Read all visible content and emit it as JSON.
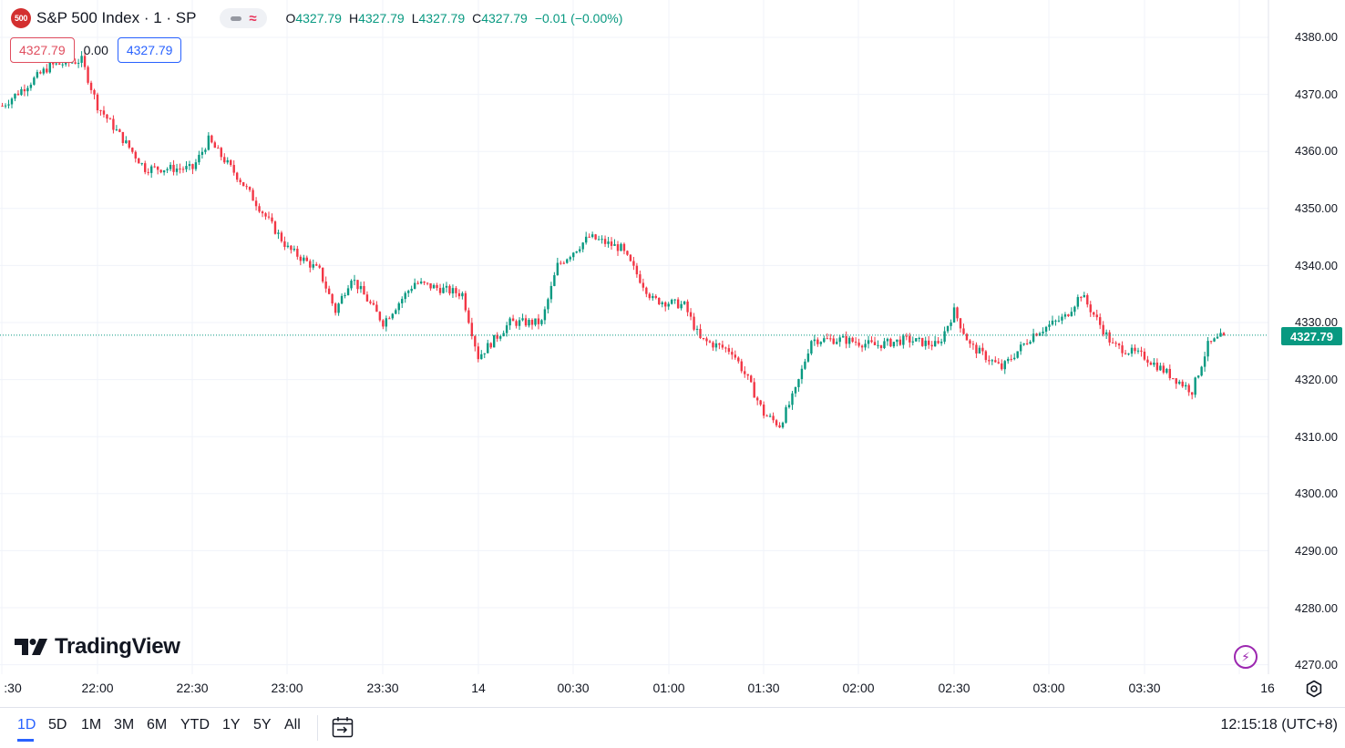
{
  "header": {
    "symbol_badge": "500",
    "symbol_title": "S&P 500 Index · 1 · SP",
    "ohlc": {
      "o_label": "O",
      "o_value": "4327.79",
      "h_label": "H",
      "h_value": "4327.79",
      "l_label": "L",
      "l_value": "4327.79",
      "c_label": "C",
      "c_value": "4327.79",
      "change": "−0.01 (−0.00%)"
    },
    "sell_price": "4327.79",
    "spread": "0.00",
    "buy_price": "4327.79"
  },
  "price_axis": {
    "labels": [
      "4380.00",
      "4370.00",
      "4360.00",
      "4350.00",
      "4340.00",
      "4330.00",
      "4320.00",
      "4310.00",
      "4300.00",
      "4290.00",
      "4280.00",
      "4270.00"
    ],
    "last_price_tag": "4327.79"
  },
  "time_axis": {
    "labels": [
      ":30",
      "22:00",
      "22:30",
      "23:00",
      "23:30",
      "14",
      "00:30",
      "01:00",
      "01:30",
      "02:00",
      "02:30",
      "03:00",
      "03:30",
      "16"
    ]
  },
  "branding": {
    "logo_text": "TradingView"
  },
  "toolbar": {
    "ranges": [
      "1D",
      "5D",
      "1M",
      "3M",
      "6M",
      "YTD",
      "1Y",
      "5Y",
      "All"
    ],
    "active_range": "1D",
    "clock": "12:15:18 (UTC+8)"
  },
  "icons": {
    "calendar": "calendar-goto-icon",
    "settings": "gear-icon",
    "lightning": "lightning-icon",
    "logo": "tradingview-logo-icon"
  },
  "colors": {
    "up": "#089981",
    "down": "#f23645",
    "grid": "#f0f3fa",
    "last_price_line": "#089981",
    "accent": "#2962ff",
    "symbol_badge": "#d32f2f"
  },
  "chart_data": {
    "type": "candlestick",
    "interval": "1 minute",
    "title": "S&P 500 Index · 1 · SP",
    "ylim": [
      4270,
      4380
    ],
    "x_tick_labels": [
      ":30",
      "22:00",
      "22:30",
      "23:00",
      "23:30",
      "14",
      "00:30",
      "01:00",
      "01:30",
      "02:00",
      "02:30",
      "03:00",
      "03:30",
      "16"
    ],
    "last_price": 4327.79,
    "close_path": [
      {
        "time": "21:30",
        "price": 4368
      },
      {
        "time": "21:45",
        "price": 4375
      },
      {
        "time": "21:55",
        "price": 4376
      },
      {
        "time": "22:00",
        "price": 4368
      },
      {
        "time": "22:15",
        "price": 4357
      },
      {
        "time": "22:30",
        "price": 4357
      },
      {
        "time": "22:35",
        "price": 4362
      },
      {
        "time": "22:45",
        "price": 4355
      },
      {
        "time": "23:00",
        "price": 4343
      },
      {
        "time": "23:10",
        "price": 4339
      },
      {
        "time": "23:15",
        "price": 4332
      },
      {
        "time": "23:20",
        "price": 4338
      },
      {
        "time": "23:30",
        "price": 4330
      },
      {
        "time": "23:40",
        "price": 4337
      },
      {
        "time": "23:55",
        "price": 4335
      },
      {
        "time": "00:00",
        "price": 4324
      },
      {
        "time": "00:10",
        "price": 4330
      },
      {
        "time": "00:20",
        "price": 4330
      },
      {
        "time": "00:25",
        "price": 4340
      },
      {
        "time": "00:35",
        "price": 4345
      },
      {
        "time": "00:45",
        "price": 4343
      },
      {
        "time": "00:55",
        "price": 4334
      },
      {
        "time": "01:05",
        "price": 4333
      },
      {
        "time": "01:10",
        "price": 4327
      },
      {
        "time": "01:20",
        "price": 4325
      },
      {
        "time": "01:25",
        "price": 4320
      },
      {
        "time": "01:30",
        "price": 4314
      },
      {
        "time": "01:35",
        "price": 4312
      },
      {
        "time": "01:40",
        "price": 4318
      },
      {
        "time": "01:45",
        "price": 4327
      },
      {
        "time": "01:55",
        "price": 4327
      },
      {
        "time": "02:05",
        "price": 4326
      },
      {
        "time": "02:15",
        "price": 4327
      },
      {
        "time": "02:25",
        "price": 4326
      },
      {
        "time": "02:30",
        "price": 4332
      },
      {
        "time": "02:35",
        "price": 4326
      },
      {
        "time": "02:45",
        "price": 4322
      },
      {
        "time": "02:55",
        "price": 4328
      },
      {
        "time": "03:05",
        "price": 4331
      },
      {
        "time": "03:10",
        "price": 4335
      },
      {
        "time": "03:20",
        "price": 4326
      },
      {
        "time": "03:30",
        "price": 4324
      },
      {
        "time": "03:40",
        "price": 4320
      },
      {
        "time": "03:45",
        "price": 4318
      },
      {
        "time": "03:50",
        "price": 4326
      },
      {
        "time": "03:55",
        "price": 4327.79
      }
    ]
  }
}
